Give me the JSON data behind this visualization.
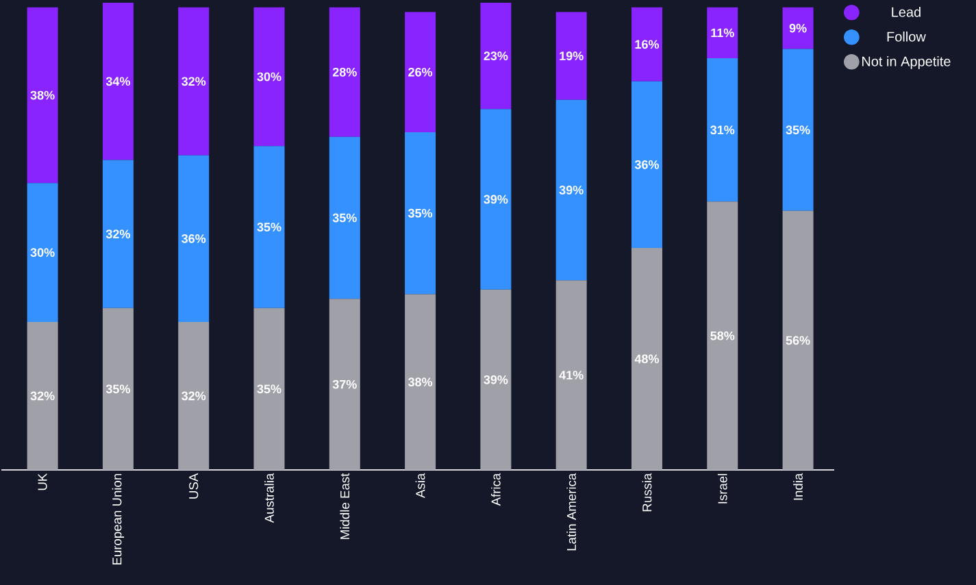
{
  "chart_data": {
    "type": "bar",
    "stacked": true,
    "data_labels": true,
    "legend": "top right",
    "categories": [
      "UK",
      "European Union",
      "USA",
      "Australia",
      "Middle East",
      "Asia",
      "Africa",
      "Latin America",
      "Russia",
      "Israel",
      "India"
    ],
    "series": [
      {
        "name": "Not in Appetite",
        "color": "#a0a1a8",
        "values": [
          32,
          35,
          32,
          35,
          37,
          38,
          39,
          41,
          48,
          58,
          56
        ],
        "value_labels": [
          "32%",
          "35%",
          "32%",
          "35%",
          "37%",
          "38%",
          "39%",
          "41%",
          "48%",
          "58%",
          "56%"
        ]
      },
      {
        "name": "Follow",
        "color": "#3591ff",
        "values": [
          30,
          32,
          36,
          35,
          35,
          35,
          39,
          39,
          36,
          31,
          35
        ],
        "value_labels": [
          "30%",
          "32%",
          "36%",
          "35%",
          "35%",
          "35%",
          "39%",
          "39%",
          "36%",
          "31%",
          "35%"
        ]
      },
      {
        "name": "Lead",
        "color": "#8a24ff",
        "values": [
          38,
          34,
          32,
          30,
          28,
          26,
          23,
          19,
          16,
          11,
          9
        ],
        "value_labels": [
          "38%",
          "34%",
          "32%",
          "30%",
          "28%",
          "26%",
          "23%",
          "19%",
          "16%",
          "11%",
          "9%"
        ]
      }
    ]
  }
}
